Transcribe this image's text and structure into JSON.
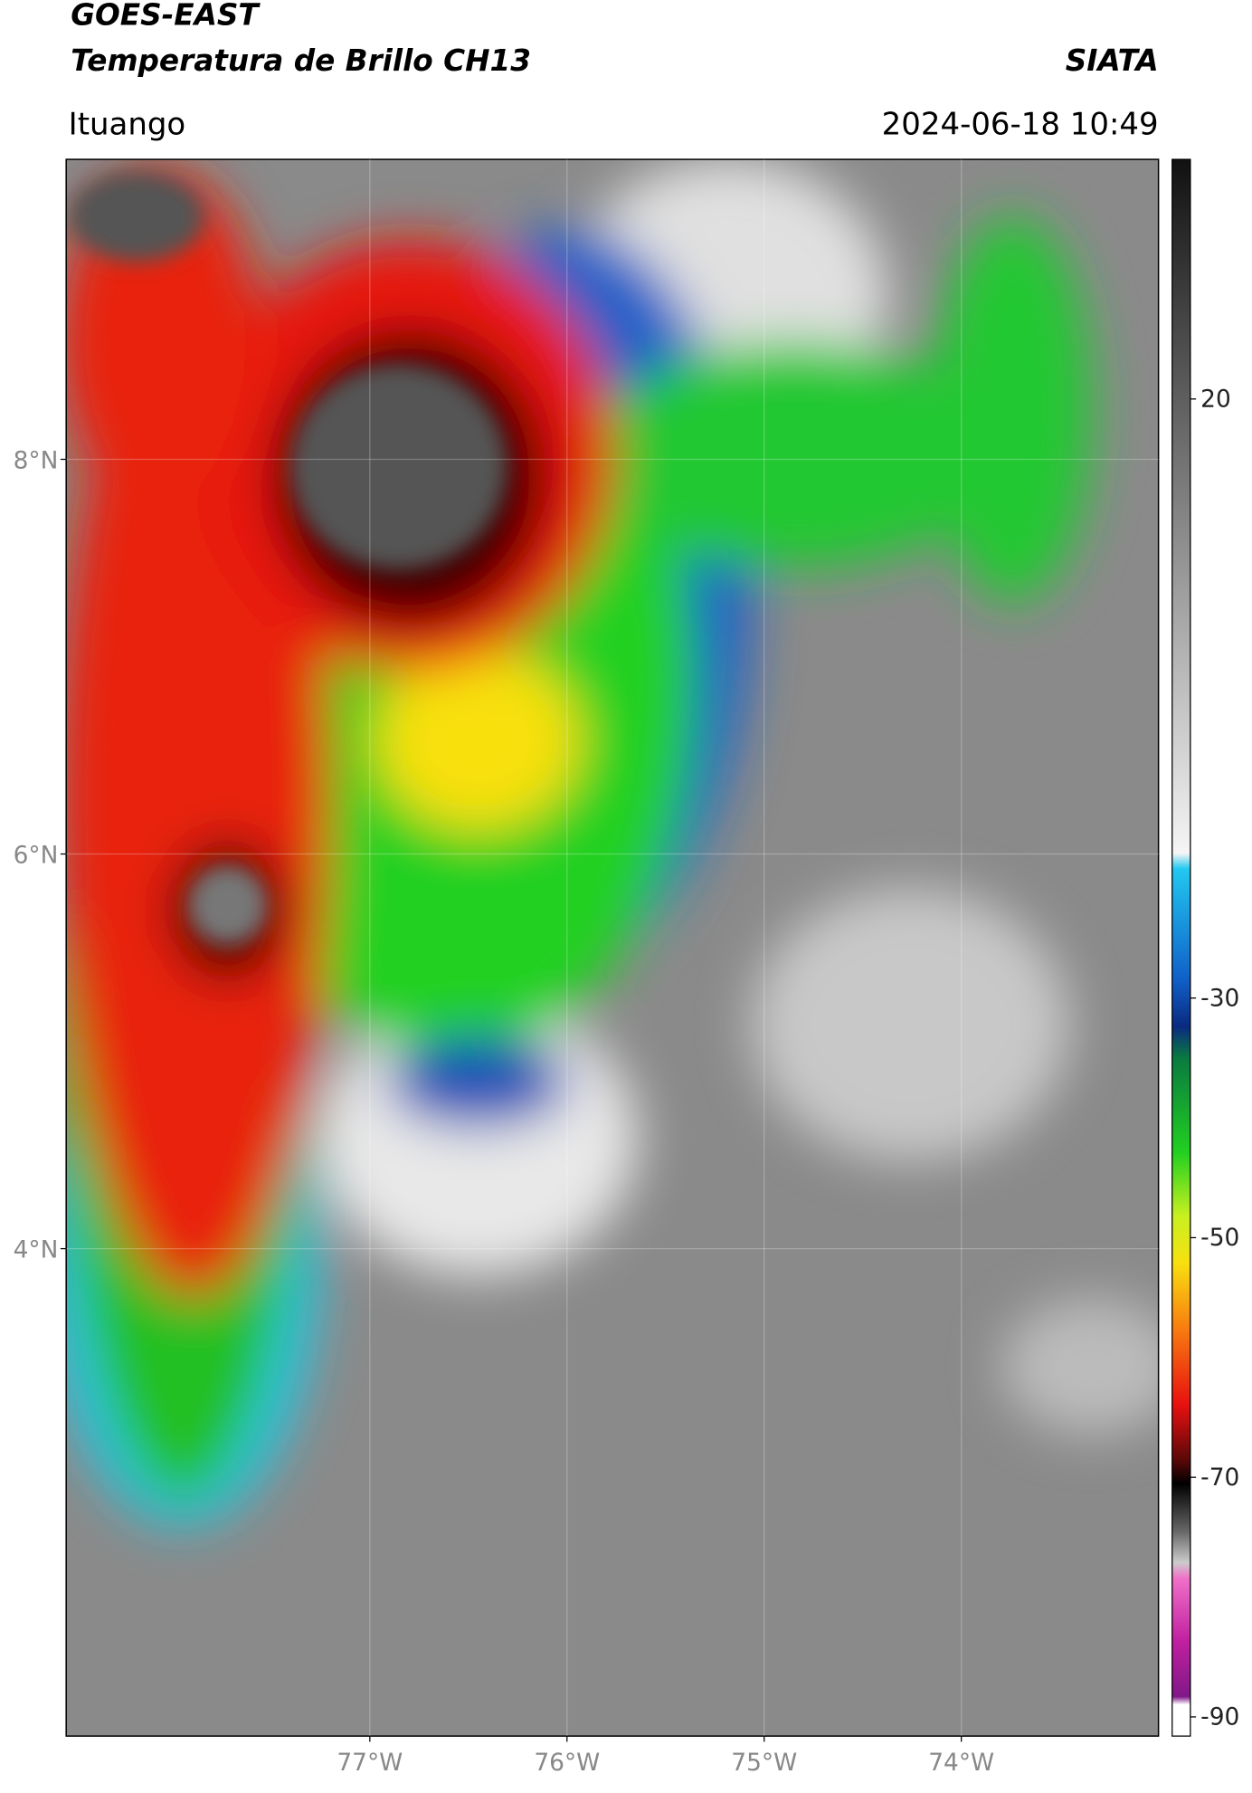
{
  "header": {
    "title": "GOES-EAST",
    "subtitle": "Temperatura de Brillo CH13",
    "organization": "SIATA",
    "location": "Ituango",
    "datetime": "2024-06-18 10:49"
  },
  "map": {
    "latlim": [
      1.53,
      9.52
    ],
    "lonlim": [
      -78.54,
      -73.0
    ],
    "latticks": [
      {
        "value": 8,
        "label": "8°N"
      },
      {
        "value": 6,
        "label": "6°N"
      },
      {
        "value": 4,
        "label": "4°N"
      }
    ],
    "lonticks": [
      {
        "value": -77,
        "label": "77°W"
      },
      {
        "value": -76,
        "label": "76°W"
      },
      {
        "value": -75,
        "label": "75°W"
      },
      {
        "value": -74,
        "label": "74°W"
      }
    ]
  },
  "colorbar": {
    "lim": [
      -91.6,
      40
    ],
    "ticks": [
      20,
      -30,
      -50,
      -70,
      -90
    ]
  }
}
